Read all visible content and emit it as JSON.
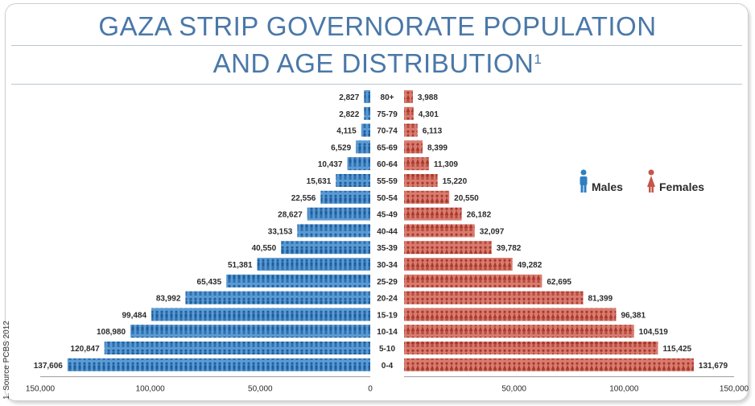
{
  "title_line1": "GAZA STRIP GOVERNORATE POPULATION",
  "title_line2": "AND AGE DISTRIBUTION",
  "title_footnote": "1",
  "source": "1. Source PCBS 2012",
  "colors": {
    "males": "#2f7fc1",
    "females": "#c4574a",
    "title": "#4a78a8"
  },
  "chart_data": {
    "type": "bar",
    "orientation": "horizontal-population-pyramid",
    "categories": [
      "80+",
      "75-79",
      "70-74",
      "65-69",
      "60-64",
      "55-59",
      "50-54",
      "45-49",
      "40-44",
      "35-39",
      "30-34",
      "25-29",
      "20-24",
      "15-19",
      "10-14",
      "5-10",
      "0-4"
    ],
    "series": [
      {
        "name": "Males",
        "values": [
          2827,
          2822,
          4115,
          6529,
          10437,
          15631,
          22556,
          28627,
          33153,
          40550,
          51381,
          65435,
          83992,
          99484,
          108980,
          120847,
          137606
        ]
      },
      {
        "name": "Females",
        "values": [
          3988,
          4301,
          6113,
          8399,
          11309,
          15220,
          20550,
          26182,
          32097,
          39782,
          49282,
          62695,
          81399,
          96381,
          104519,
          115425,
          131679
        ]
      }
    ],
    "value_labels": {
      "males": [
        "2,827",
        "2,822",
        "4,115",
        "6,529",
        "10,437",
        "15,631",
        "22,556",
        "28,627",
        "33,153",
        "40,550",
        "51,381",
        "65,435",
        "83,992",
        "99,484",
        "108,980",
        "120,847",
        "137,606"
      ],
      "females": [
        "3,988",
        "4,301",
        "6,113",
        "8,399",
        "11,309",
        "15,220",
        "20,550",
        "26,182",
        "32,097",
        "39,782",
        "49,282",
        "62,695",
        "81,399",
        "96,381",
        "104,519",
        "115,425",
        "131,679"
      ]
    },
    "xlim": [
      -150000,
      150000
    ],
    "x_ticks": [
      -150000,
      -100000,
      -50000,
      0,
      50000,
      100000,
      150000
    ],
    "x_tick_labels": [
      "150,000",
      "100,000",
      "50,000",
      "0",
      "50,000",
      "100,000",
      "150,000"
    ],
    "legend": [
      "Males",
      "Females"
    ],
    "legend_position": "right"
  }
}
